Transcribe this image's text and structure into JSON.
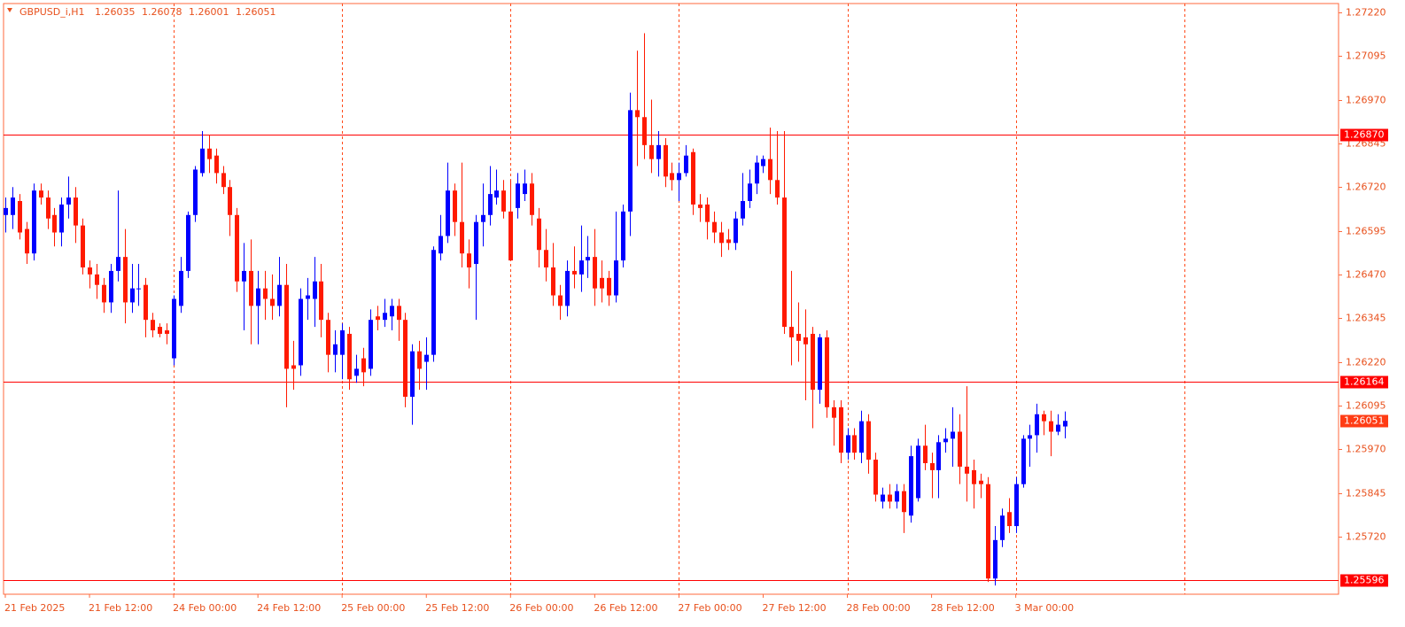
{
  "chart_data": {
    "type": "candlestick",
    "symbol": "GBPUSD_i,H1",
    "bull_color": "#0000ff",
    "bear_color": "#ff1a00",
    "grid_color": "#ff4a1a",
    "axis_color": "#ff6a3d",
    "hline_color": "#ff0000",
    "categories": [
      "21 Feb 2025",
      null,
      null,
      null,
      null,
      null,
      null,
      null,
      null,
      null,
      null,
      null,
      "21 Feb 12:00",
      null,
      null,
      null,
      null,
      null,
      null,
      null,
      null,
      null,
      null,
      null,
      "24 Feb 00:00",
      null,
      null,
      null,
      null,
      null,
      null,
      null,
      null,
      null,
      null,
      null,
      "24 Feb 12:00",
      null,
      null,
      null,
      null,
      null,
      null,
      null,
      null,
      null,
      null,
      null,
      "25 Feb 00:00",
      null,
      null,
      null,
      null,
      null,
      null,
      null,
      null,
      null,
      null,
      null,
      "25 Feb 12:00",
      null,
      null,
      null,
      null,
      null,
      null,
      null,
      null,
      null,
      null,
      null,
      "26 Feb 00:00",
      null,
      null,
      null,
      null,
      null,
      null,
      null,
      null,
      null,
      null,
      null,
      "26 Feb 12:00",
      null,
      null,
      null,
      null,
      null,
      null,
      null,
      null,
      null,
      null,
      null,
      "27 Feb 00:00",
      null,
      null,
      null,
      null,
      null,
      null,
      null,
      null,
      null,
      null,
      null,
      "27 Feb 12:00",
      null,
      null,
      null,
      null,
      null,
      null,
      null,
      null,
      null,
      null,
      null,
      "28 Feb 00:00",
      null,
      null,
      null,
      null,
      null,
      null,
      null,
      null,
      null,
      null,
      null,
      "28 Feb 12:00",
      null,
      null,
      null,
      null,
      null,
      null,
      null,
      null,
      null,
      null,
      null,
      "3 Mar 00:00",
      null,
      null,
      null,
      null,
      null,
      null,
      null
    ],
    "open": [
      1.2664,
      1.2664,
      1.2668,
      1.266,
      1.2653,
      1.2671,
      1.2669,
      1.2664,
      1.2659,
      1.2667,
      1.2669,
      1.2661,
      1.2649,
      1.2647,
      1.2644,
      1.2639,
      1.2648,
      1.2652,
      1.2639,
      1.2643,
      1.2644,
      1.2634,
      1.2632,
      1.2631,
      1.2623,
      1.2638,
      1.2648,
      1.2664,
      1.2676,
      1.2683,
      1.2681,
      1.2676,
      1.2672,
      1.2664,
      1.2645,
      1.2648,
      1.2638,
      1.2643,
      1.264,
      1.2638,
      1.2644,
      1.2621,
      1.2621,
      1.264,
      1.264,
      1.2645,
      1.2634,
      1.2624,
      1.2624,
      1.263,
      1.2618,
      1.2623,
      1.262,
      1.2635,
      1.2634,
      1.2635,
      1.2638,
      1.2634,
      1.2612,
      1.2625,
      1.2622,
      1.2624,
      1.2653,
      1.2658,
      1.2671,
      1.2662,
      1.2653,
      1.265,
      1.2662,
      1.2664,
      1.2669,
      1.2671,
      1.2665,
      1.2666,
      1.267,
      1.2673,
      1.2663,
      1.2654,
      1.2649,
      1.2641,
      1.2638,
      1.2648,
      1.2647,
      1.2651,
      1.2652,
      1.2646,
      1.2646,
      1.2641,
      1.2651,
      1.2665,
      1.2694,
      1.2692,
      1.2684,
      1.268,
      1.2684,
      1.2676,
      1.2674,
      1.2676,
      1.2682,
      1.2667,
      1.2667,
      1.2662,
      1.2659,
      1.2657,
      1.2656,
      1.2663,
      1.2668,
      1.2673,
      1.2678,
      1.268,
      1.2674,
      1.2669,
      1.2632,
      1.263,
      1.2629,
      1.263,
      1.2614,
      1.2629,
      1.2609,
      1.2609,
      1.2596,
      1.2601,
      1.2596,
      1.2605,
      1.2594,
      1.2582,
      1.2584,
      1.2582,
      1.2585,
      1.2578,
      1.2583,
      1.2598,
      1.2593,
      1.2591,
      1.2599,
      1.26,
      1.2602,
      1.2592,
      1.2591,
      1.2588,
      1.2587,
      1.256,
      1.2571,
      1.2579,
      1.2575,
      1.2587,
      1.26,
      1.2601,
      1.2607,
      1.2605,
      1.2602,
      1.26035
    ],
    "high": [
      1.2669,
      1.2672,
      1.267,
      1.2662,
      1.2673,
      1.2673,
      1.2671,
      1.2666,
      1.2669,
      1.2675,
      1.2672,
      1.2663,
      1.2651,
      1.265,
      1.2646,
      1.265,
      1.2671,
      1.266,
      1.265,
      1.265,
      1.2646,
      1.2636,
      1.2633,
      1.2633,
      1.2641,
      1.2652,
      1.2665,
      1.2678,
      1.2688,
      1.2687,
      1.2683,
      1.2678,
      1.2674,
      1.2666,
      1.2656,
      1.2657,
      1.2648,
      1.2648,
      1.2647,
      1.2652,
      1.265,
      1.2628,
      1.2643,
      1.2646,
      1.2652,
      1.265,
      1.2636,
      1.2631,
      1.2633,
      1.2632,
      1.2624,
      1.2626,
      1.2637,
      1.2638,
      1.264,
      1.264,
      1.264,
      1.2636,
      1.2627,
      1.2628,
      1.2629,
      1.2655,
      1.2664,
      1.2679,
      1.2673,
      1.2679,
      1.2657,
      1.2664,
      1.2673,
      1.2678,
      1.2677,
      1.2674,
      1.2674,
      1.2676,
      1.2677,
      1.2676,
      1.2666,
      1.266,
      1.2656,
      1.2644,
      1.2651,
      1.2655,
      1.2661,
      1.2658,
      1.266,
      1.2651,
      1.2648,
      1.2665,
      1.2667,
      1.2699,
      1.2711,
      1.2716,
      1.2697,
      1.2688,
      1.2686,
      1.2679,
      1.2679,
      1.2684,
      1.2683,
      1.267,
      1.2669,
      1.2665,
      1.2662,
      1.266,
      1.2665,
      1.2676,
      1.2677,
      1.2681,
      1.2681,
      1.2689,
      1.2688,
      1.2688,
      1.2648,
      1.2639,
      1.2637,
      1.2632,
      1.263,
      1.2631,
      1.2611,
      1.2611,
      1.2603,
      1.2603,
      1.2608,
      1.2607,
      1.2596,
      1.2586,
      1.2587,
      1.2587,
      1.2587,
      1.2598,
      1.26,
      1.2604,
      1.2596,
      1.2601,
      1.2603,
      1.2609,
      1.2607,
      1.2615,
      1.2594,
      1.259,
      1.2589,
      1.2575,
      1.258,
      1.2583,
      1.2589,
      1.2601,
      1.2604,
      1.261,
      1.2608,
      1.2608,
      1.2607,
      1.26078
    ],
    "low": [
      1.2659,
      1.266,
      1.2657,
      1.265,
      1.2651,
      1.2667,
      1.266,
      1.2655,
      1.2655,
      1.2663,
      1.2656,
      1.2647,
      1.2643,
      1.264,
      1.2636,
      1.2636,
      1.2645,
      1.2633,
      1.2636,
      1.2638,
      1.2629,
      1.2629,
      1.2629,
      1.2627,
      1.2621,
      1.2636,
      1.2646,
      1.2662,
      1.2675,
      1.2676,
      1.2673,
      1.267,
      1.2658,
      1.2642,
      1.2631,
      1.2627,
      1.2627,
      1.2634,
      1.2634,
      1.2635,
      1.2609,
      1.2614,
      1.2618,
      1.2634,
      1.2632,
      1.2629,
      1.2619,
      1.2619,
      1.2617,
      1.2614,
      1.2616,
      1.2615,
      1.2618,
      1.2631,
      1.2632,
      1.2631,
      1.2628,
      1.2609,
      1.2604,
      1.2614,
      1.2614,
      1.2622,
      1.2651,
      1.2656,
      1.2658,
      1.2649,
      1.2643,
      1.2634,
      1.2655,
      1.2661,
      1.2667,
      1.2663,
      1.2651,
      1.2663,
      1.2668,
      1.2661,
      1.2649,
      1.2645,
      1.2638,
      1.2634,
      1.2635,
      1.2643,
      1.2642,
      1.2646,
      1.2638,
      1.2639,
      1.2638,
      1.2639,
      1.2649,
      1.2658,
      1.2678,
      1.268,
      1.2676,
      1.2675,
      1.2672,
      1.2671,
      1.2668,
      1.2675,
      1.2664,
      1.2662,
      1.2657,
      1.2656,
      1.2652,
      1.2654,
      1.2654,
      1.2661,
      1.2666,
      1.267,
      1.2676,
      1.267,
      1.2667,
      1.263,
      1.2621,
      1.2622,
      1.2611,
      1.2603,
      1.261,
      1.2606,
      1.2598,
      1.2593,
      1.2594,
      1.2594,
      1.2593,
      1.259,
      1.2582,
      1.258,
      1.258,
      1.258,
      1.2573,
      1.2576,
      1.2582,
      1.2591,
      1.2583,
      1.2583,
      1.2596,
      1.2592,
      1.2587,
      1.2582,
      1.258,
      1.2583,
      1.2559,
      1.2558,
      1.2569,
      1.2573,
      1.2573,
      1.2586,
      1.2592,
      1.2596,
      1.2601,
      1.2595,
      1.2601,
      1.26001
    ],
    "close": [
      1.2666,
      1.2669,
      1.2659,
      1.2653,
      1.2671,
      1.2669,
      1.2663,
      1.2659,
      1.2667,
      1.2669,
      1.2661,
      1.2649,
      1.2647,
      1.2644,
      1.2639,
      1.2648,
      1.2652,
      1.2639,
      1.2643,
      1.2643,
      1.2634,
      1.2631,
      1.263,
      1.263,
      1.264,
      1.2648,
      1.2664,
      1.2677,
      1.2683,
      1.268,
      1.2676,
      1.2672,
      1.2664,
      1.2645,
      1.2648,
      1.2638,
      1.2643,
      1.264,
      1.2638,
      1.2644,
      1.262,
      1.262,
      1.264,
      1.2641,
      1.2645,
      1.2634,
      1.2624,
      1.2627,
      1.2631,
      1.2617,
      1.262,
      1.2619,
      1.2634,
      1.2634,
      1.2636,
      1.2638,
      1.2634,
      1.2612,
      1.2625,
      1.262,
      1.2624,
      1.2654,
      1.2658,
      1.2671,
      1.2662,
      1.2653,
      1.2649,
      1.2662,
      1.2664,
      1.267,
      1.2671,
      1.2665,
      1.2651,
      1.2673,
      1.2673,
      1.2664,
      1.2654,
      1.2649,
      1.2641,
      1.2638,
      1.2648,
      1.2647,
      1.2651,
      1.2652,
      1.2643,
      1.2643,
      1.2641,
      1.2651,
      1.2665,
      1.2694,
      1.2692,
      1.2684,
      1.268,
      1.2684,
      1.2675,
      1.2674,
      1.2676,
      1.2681,
      1.2667,
      1.2666,
      1.2662,
      1.2659,
      1.2656,
      1.2656,
      1.2663,
      1.2668,
      1.2673,
      1.2679,
      1.268,
      1.2674,
      1.2669,
      1.2632,
      1.2629,
      1.2628,
      1.2627,
      1.2614,
      1.2629,
      1.2609,
      1.2606,
      1.2596,
      1.2601,
      1.2596,
      1.2605,
      1.2594,
      1.2584,
      1.2584,
      1.2582,
      1.2585,
      1.2579,
      1.2595,
      1.2598,
      1.2593,
      1.2591,
      1.2599,
      1.26,
      1.2602,
      1.2592,
      1.259,
      1.2587,
      1.2587,
      1.256,
      1.2571,
      1.2578,
      1.2575,
      1.2587,
      1.26,
      1.2601,
      1.2607,
      1.2605,
      1.2602,
      1.2604,
      1.26051
    ],
    "xlim": [
      -0.25,
      190
    ],
    "xticks": [
      24,
      48,
      72,
      96,
      120,
      144,
      168
    ],
    "ylim": [
      1.25555,
      1.27245
    ],
    "yticks": [
      {
        "value": 1.2722,
        "label": "1.27220"
      },
      {
        "value": 1.27095,
        "label": "1.27095"
      },
      {
        "value": 1.2697,
        "label": "1.26970"
      },
      {
        "value": 1.26845,
        "label": "1.26845"
      },
      {
        "value": 1.2672,
        "label": "1.26720"
      },
      {
        "value": 1.26595,
        "label": "1.26595"
      },
      {
        "value": 1.2647,
        "label": "1.26470"
      },
      {
        "value": 1.26345,
        "label": "1.26345"
      },
      {
        "value": 1.2622,
        "label": "1.26220"
      },
      {
        "value": 1.26095,
        "label": "1.26095"
      },
      {
        "value": 1.2597,
        "label": "1.25970"
      },
      {
        "value": 1.25845,
        "label": "1.25845"
      },
      {
        "value": 1.2572,
        "label": "1.25720"
      }
    ],
    "hlines": [
      {
        "value": 1.2687,
        "label": "1.26870"
      },
      {
        "value": 1.26164,
        "label": "1.26164"
      },
      {
        "value": 1.25596,
        "label": "1.25596"
      }
    ],
    "grid": true
  }
}
